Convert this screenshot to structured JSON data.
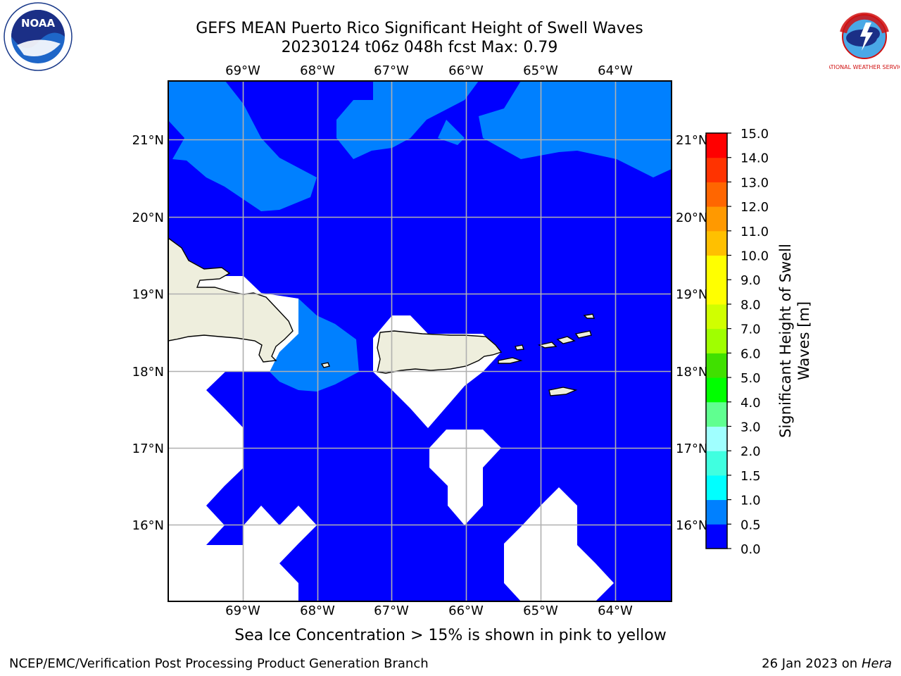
{
  "title_line1": "GEFS MEAN Puerto Rico Significant Height of Swell Waves",
  "title_line2": "20230124 t06z 048h fcst   Max: 0.79",
  "logos": {
    "left": "NOAA",
    "right": "NATIONAL WEATHER SERVICE",
    "left_ring_text": "NATIONAL OCEANIC AND ATMOSPHERIC ADMINISTRATION · U.S. DEPARTMENT OF COMMERCE"
  },
  "map": {
    "lon_labels": [
      "69°W",
      "68°W",
      "67°W",
      "66°W",
      "65°W",
      "64°W"
    ],
    "lat_labels": [
      "21°N",
      "20°N",
      "19°N",
      "18°N",
      "17°N",
      "16°N"
    ],
    "lon_values": [
      -69,
      -68,
      -67,
      -66,
      -65,
      -64
    ],
    "lat_values": [
      21,
      20,
      19,
      18,
      17,
      16
    ],
    "extent": {
      "lon_min": -70,
      "lon_max": -63.25,
      "lat_min": 15,
      "lat_max": 21.75
    },
    "colors": {
      "ocean_low": "#0000ff",
      "ocean_mid": "#0080ff",
      "land": "#eeeedd",
      "no_data": "#ffffff",
      "grid": "#b0b0b0"
    }
  },
  "colorbar": {
    "title_line1": "Significant Height of Swell",
    "title_line2": "Waves [m]",
    "tick_labels": [
      "15.0",
      "14.0",
      "13.0",
      "12.0",
      "11.0",
      "10.0",
      "9.0",
      "8.0",
      "7.0",
      "6.0",
      "5.0",
      "4.0",
      "3.0",
      "2.0",
      "1.5",
      "1.0",
      "0.5",
      "0.0"
    ],
    "levels": [
      0,
      0.5,
      1,
      1.5,
      2,
      3,
      4,
      5,
      6,
      7,
      8,
      9,
      10,
      11,
      12,
      13,
      14,
      15
    ],
    "colors": [
      "#0000ff",
      "#0080ff",
      "#00ffff",
      "#40ffe0",
      "#a0ffff",
      "#60ff90",
      "#00ff00",
      "#40e000",
      "#a0ff00",
      "#d0ff00",
      "#ffff00",
      "#ffff00",
      "#ffc000",
      "#ff9900",
      "#ff6600",
      "#ff3300",
      "#ff0000"
    ]
  },
  "note": "Sea Ice Concentration > 15% is shown in pink to yellow",
  "footer_left": "NCEP/EMC/Verification Post Processing Product Generation Branch",
  "footer_right_prefix": "26 Jan 2023 on ",
  "footer_right_machine": "Hera"
}
